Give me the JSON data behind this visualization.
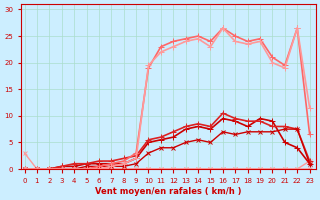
{
  "xlabel": "Vent moyen/en rafales ( km/h )",
  "xlabel_color": "#cc0000",
  "background_color": "#cceeff",
  "grid_color": "#aaddcc",
  "tick_color": "#cc0000",
  "x_ticks": [
    0,
    1,
    2,
    3,
    4,
    5,
    6,
    7,
    8,
    9,
    10,
    11,
    12,
    13,
    14,
    15,
    16,
    17,
    18,
    19,
    20,
    21,
    22,
    23
  ],
  "y_ticks": [
    0,
    5,
    10,
    15,
    20,
    25,
    30
  ],
  "xlim": [
    -0.3,
    23.5
  ],
  "ylim": [
    0,
    31
  ],
  "arrow_color": "#cc0000",
  "series": [
    {
      "x": [
        0,
        1,
        2,
        3,
        4,
        5,
        6,
        7,
        8,
        9,
        10,
        11,
        12,
        13,
        14,
        15,
        16,
        17,
        18,
        19,
        20,
        21,
        22,
        23
      ],
      "y": [
        0,
        0,
        0,
        0,
        0,
        0,
        0,
        0,
        0,
        0,
        0,
        0,
        0,
        0,
        0,
        0,
        0,
        0,
        0,
        0,
        0,
        0,
        0,
        1.5
      ],
      "color": "#ff9999",
      "linewidth": 1.0,
      "marker": "x",
      "markersize": 3
    },
    {
      "x": [
        0,
        1,
        2,
        3,
        4,
        5,
        6,
        7,
        8,
        9,
        10,
        11,
        12,
        13,
        14,
        15,
        16,
        17,
        18,
        19,
        20,
        21,
        22,
        23
      ],
      "y": [
        3,
        0,
        0,
        0,
        0,
        0,
        0,
        0,
        0,
        0,
        0,
        0,
        0,
        0,
        0,
        0,
        0,
        0,
        0,
        0,
        0,
        0,
        0,
        0
      ],
      "color": "#ff9999",
      "linewidth": 1.0,
      "marker": "x",
      "markersize": 3
    },
    {
      "x": [
        0,
        1,
        2,
        3,
        4,
        5,
        6,
        7,
        8,
        9,
        10,
        11,
        12,
        13,
        14,
        15,
        16,
        17,
        18,
        19,
        20,
        21,
        22,
        23
      ],
      "y": [
        0,
        0,
        0,
        0.5,
        0.5,
        1,
        1,
        1,
        1,
        2,
        5,
        5.5,
        6,
        7.5,
        8,
        7.5,
        9.5,
        9,
        8,
        9.5,
        9,
        5,
        4,
        1
      ],
      "color": "#cc0000",
      "linewidth": 1.2,
      "marker": "+",
      "markersize": 4
    },
    {
      "x": [
        0,
        1,
        2,
        3,
        4,
        5,
        6,
        7,
        8,
        9,
        10,
        11,
        12,
        13,
        14,
        15,
        16,
        17,
        18,
        19,
        20,
        21,
        22,
        23
      ],
      "y": [
        0,
        0,
        0,
        0.5,
        1,
        1,
        1.5,
        1.5,
        2,
        2.5,
        5.5,
        6,
        7,
        8,
        8.5,
        8,
        10.5,
        9.5,
        9,
        9,
        8,
        8,
        7.5,
        1.5
      ],
      "color": "#dd2222",
      "linewidth": 1.2,
      "marker": "+",
      "markersize": 4
    },
    {
      "x": [
        0,
        1,
        2,
        3,
        4,
        5,
        6,
        7,
        8,
        9,
        10,
        11,
        12,
        13,
        14,
        15,
        16,
        17,
        18,
        19,
        20,
        21,
        22,
        23
      ],
      "y": [
        0,
        0,
        0,
        0,
        0,
        0.5,
        0.5,
        0.5,
        0.5,
        1,
        3,
        4,
        4,
        5,
        5.5,
        5,
        7,
        6.5,
        7,
        7,
        7,
        7.5,
        7.5,
        1
      ],
      "color": "#cc0000",
      "linewidth": 1.0,
      "marker": "x",
      "markersize": 3
    },
    {
      "x": [
        0,
        1,
        2,
        3,
        4,
        5,
        6,
        7,
        8,
        9,
        10,
        11,
        12,
        13,
        14,
        15,
        16,
        17,
        18,
        19,
        20,
        21,
        22,
        23
      ],
      "y": [
        0,
        0,
        0,
        0,
        0,
        0,
        0.5,
        1,
        1.5,
        3,
        19,
        23,
        24,
        24.5,
        25,
        24,
        26.5,
        25,
        24,
        24.5,
        21,
        19.5,
        26.5,
        6.5
      ],
      "color": "#ff6666",
      "linewidth": 1.2,
      "marker": "+",
      "markersize": 4
    },
    {
      "x": [
        0,
        1,
        2,
        3,
        4,
        5,
        6,
        7,
        8,
        9,
        10,
        11,
        12,
        13,
        14,
        15,
        16,
        17,
        18,
        19,
        20,
        21,
        22,
        23
      ],
      "y": [
        0,
        0,
        0,
        0,
        0,
        0,
        0,
        0.5,
        1,
        2,
        19.5,
        22,
        23,
        24,
        24.5,
        23,
        26.5,
        24,
        23.5,
        24,
        20,
        19,
        26.5,
        11.5
      ],
      "color": "#ff9999",
      "linewidth": 1.2,
      "marker": "+",
      "markersize": 4
    }
  ]
}
